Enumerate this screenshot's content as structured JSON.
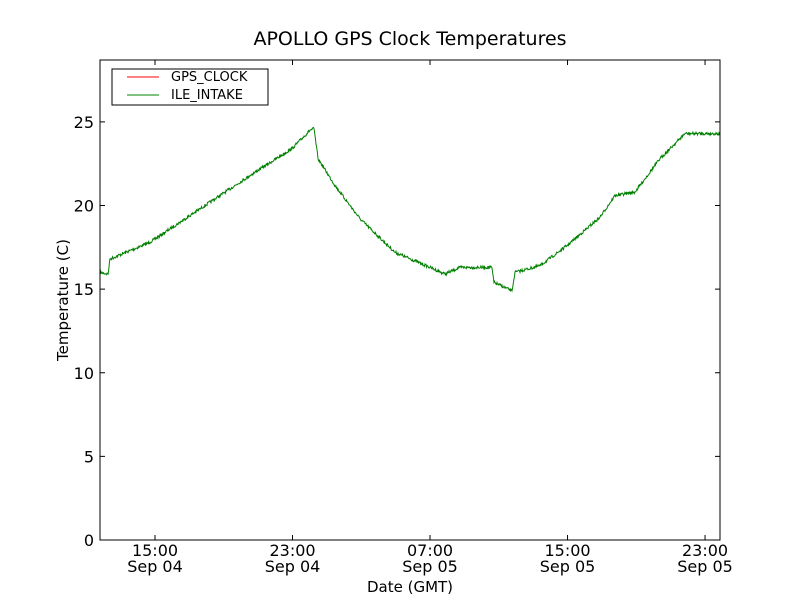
{
  "chart_data": {
    "type": "line",
    "title": "APOLLO GPS Clock Temperatures",
    "xlabel": "Date (GMT)",
    "ylabel": "Temperature (C)",
    "x_units": "hours since Sep 04 00:00 GMT",
    "xlim": [
      11.8,
      47.87
    ],
    "ylim": [
      0,
      28.7
    ],
    "grid": false,
    "legend_position": "top-left",
    "x_ticks": [
      {
        "value": 15,
        "time": "15:00",
        "date": "Sep 04"
      },
      {
        "value": 23,
        "time": "23:00",
        "date": "Sep 04"
      },
      {
        "value": 31,
        "time": "07:00",
        "date": "Sep 05"
      },
      {
        "value": 39,
        "time": "15:00",
        "date": "Sep 05"
      },
      {
        "value": 47,
        "time": "23:00",
        "date": "Sep 05"
      }
    ],
    "y_ticks": [
      {
        "value": 0,
        "label": "0"
      },
      {
        "value": 5,
        "label": "5"
      },
      {
        "value": 10,
        "label": "10"
      },
      {
        "value": 15,
        "label": "15"
      },
      {
        "value": 20,
        "label": "20"
      },
      {
        "value": 25,
        "label": "25"
      }
    ],
    "series": [
      {
        "name": "GPS_CLOCK",
        "color": "#ff0000",
        "x": [],
        "y": []
      },
      {
        "name": "ILE_INTAKE",
        "color": "#008000",
        "x": [
          11.8,
          12.27,
          12.38,
          14.71,
          17.62,
          20.53,
          22.97,
          24.02,
          24.25,
          24.48,
          25.47,
          26.93,
          28.96,
          31.0,
          31.87,
          32.74,
          34.6,
          34.72,
          35.77,
          35.94,
          37.4,
          38.97,
          40.89,
          41.76,
          42.92,
          44.38,
          45.83,
          47.87
        ],
        "y": [
          16.0,
          15.9,
          16.8,
          17.8,
          19.8,
          21.8,
          23.4,
          24.5,
          24.6,
          22.8,
          21.2,
          19.2,
          17.2,
          16.3,
          15.9,
          16.3,
          16.3,
          15.4,
          14.9,
          16.0,
          16.4,
          17.6,
          19.3,
          20.6,
          20.8,
          22.8,
          24.3,
          24.3
        ]
      }
    ]
  }
}
